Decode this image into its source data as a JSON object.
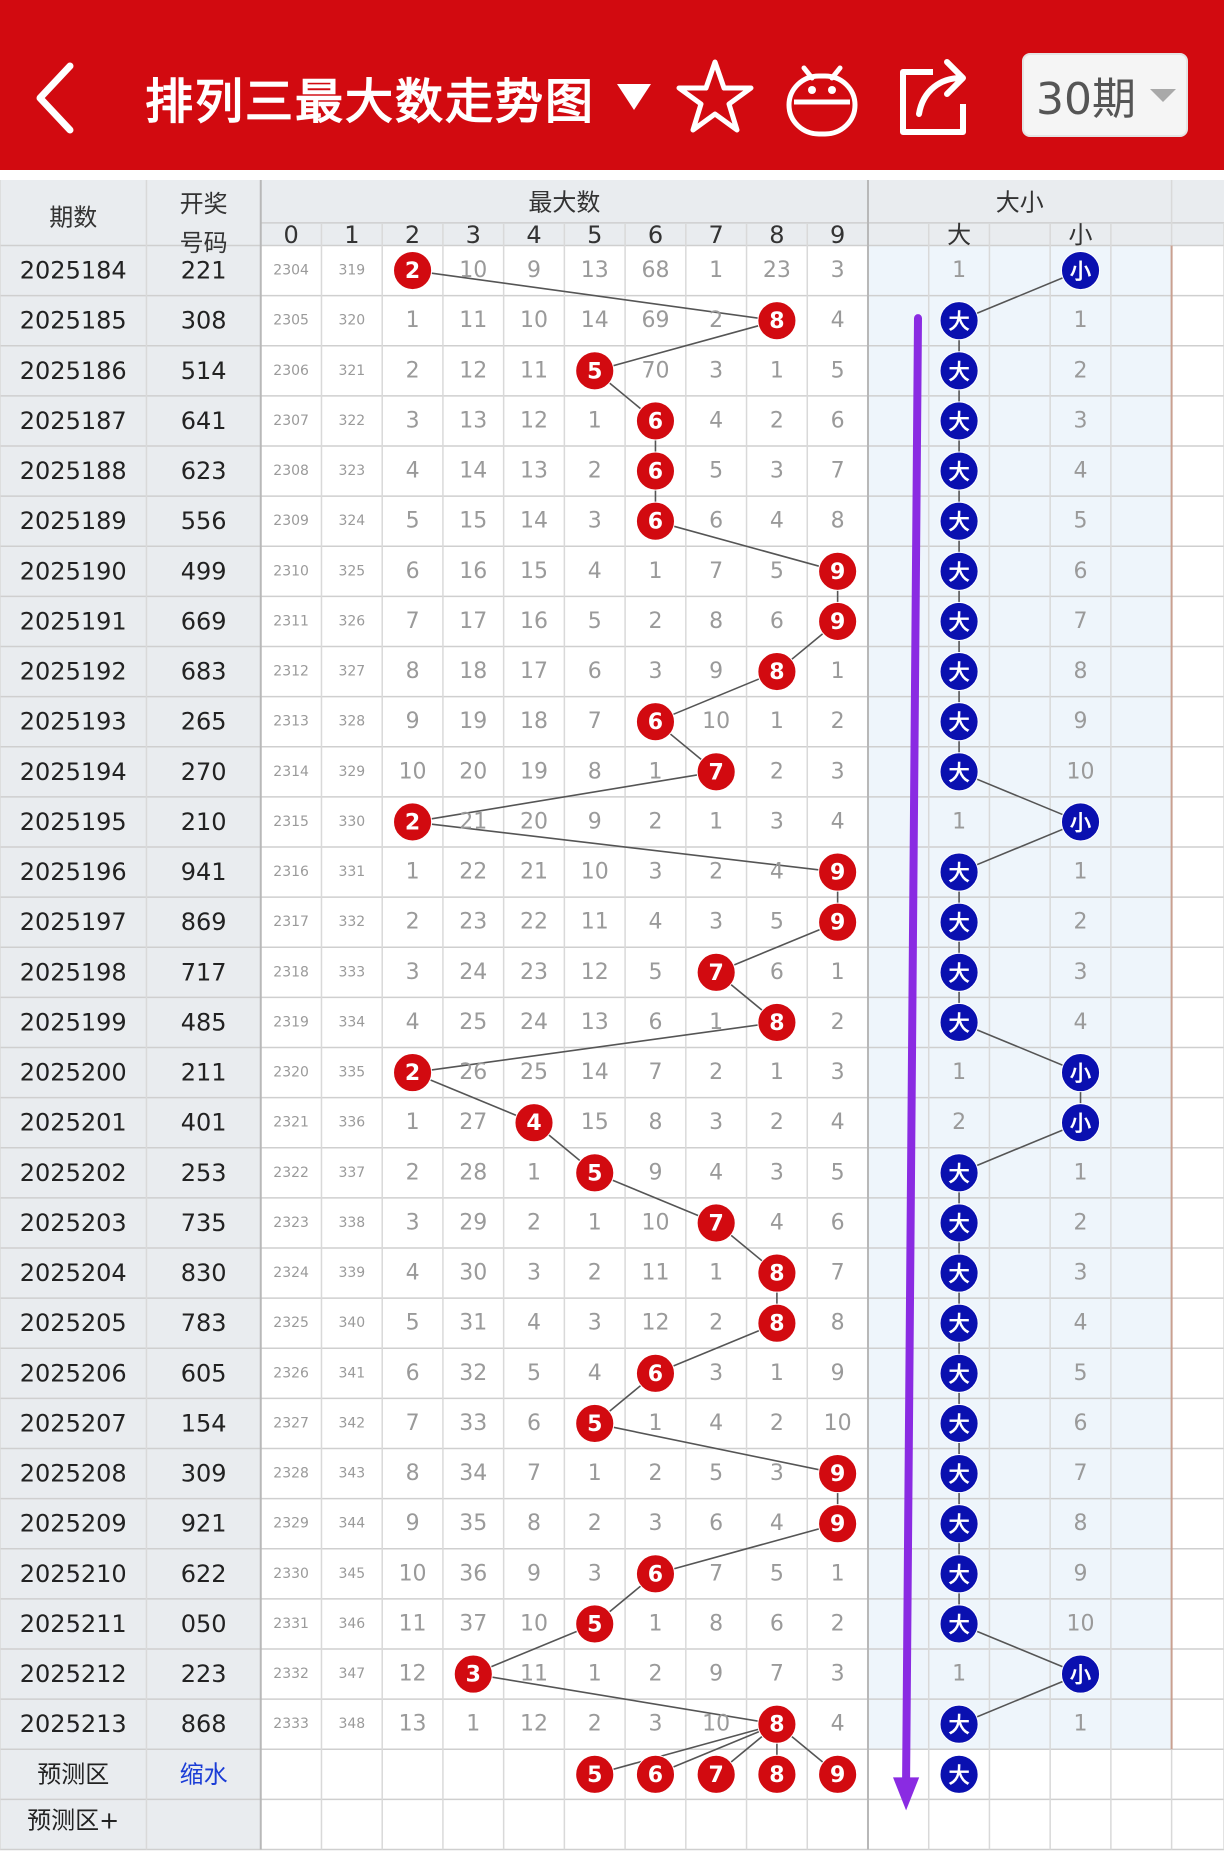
{
  "header": {
    "title": "排列三最大数走势图",
    "period_label": "30期",
    "icons": [
      "back-icon",
      "star-icon",
      "robot-icon",
      "share-icon",
      "dropdown-caret-icon"
    ]
  },
  "colors": {
    "header_bg": "#d20a10",
    "red_ball": "#d20a10",
    "blue_ball": "#0a10b0",
    "arrow": "#8a2be2",
    "zone_bg": "#eef5fb"
  },
  "table": {
    "col_issue": "期数",
    "col_draw": "开奖号码",
    "group_max": "最大数",
    "group_size": "大小",
    "digits": [
      "0",
      "1",
      "2",
      "3",
      "4",
      "5",
      "6",
      "7",
      "8",
      "9"
    ],
    "size_labels": [
      "大",
      "",
      "小"
    ],
    "rows": [
      {
        "issue": "2025184",
        "draw": "221",
        "c": [
          "2304",
          "319",
          "2",
          "10",
          "9",
          "13",
          "68",
          "1",
          "23",
          "3"
        ],
        "maxv": 2,
        "size": "小",
        "sz": [
          "1",
          "",
          "小"
        ]
      },
      {
        "issue": "2025185",
        "draw": "308",
        "c": [
          "2305",
          "320",
          "1",
          "11",
          "10",
          "14",
          "69",
          "2",
          "8",
          "4"
        ],
        "maxv": 8,
        "size": "大",
        "sz": [
          "大",
          "",
          "1"
        ]
      },
      {
        "issue": "2025186",
        "draw": "514",
        "c": [
          "2306",
          "321",
          "2",
          "12",
          "11",
          "5",
          "70",
          "3",
          "1",
          "5"
        ],
        "maxv": 5,
        "size": "大",
        "sz": [
          "大",
          "",
          "2"
        ]
      },
      {
        "issue": "2025187",
        "draw": "641",
        "c": [
          "2307",
          "322",
          "3",
          "13",
          "12",
          "1",
          "6",
          "4",
          "2",
          "6"
        ],
        "maxv": 6,
        "size": "大",
        "sz": [
          "大",
          "",
          "3"
        ]
      },
      {
        "issue": "2025188",
        "draw": "623",
        "c": [
          "2308",
          "323",
          "4",
          "14",
          "13",
          "2",
          "6",
          "5",
          "3",
          "7"
        ],
        "maxv": 6,
        "size": "大",
        "sz": [
          "大",
          "",
          "4"
        ]
      },
      {
        "issue": "2025189",
        "draw": "556",
        "c": [
          "2309",
          "324",
          "5",
          "15",
          "14",
          "3",
          "6",
          "6",
          "4",
          "8"
        ],
        "maxv": 6,
        "size": "大",
        "sz": [
          "大",
          "",
          "5"
        ]
      },
      {
        "issue": "2025190",
        "draw": "499",
        "c": [
          "2310",
          "325",
          "6",
          "16",
          "15",
          "4",
          "1",
          "7",
          "5",
          "9"
        ],
        "maxv": 9,
        "size": "大",
        "sz": [
          "大",
          "",
          "6"
        ]
      },
      {
        "issue": "2025191",
        "draw": "669",
        "c": [
          "2311",
          "326",
          "7",
          "17",
          "16",
          "5",
          "2",
          "8",
          "6",
          "9"
        ],
        "maxv": 9,
        "size": "大",
        "sz": [
          "大",
          "",
          "7"
        ]
      },
      {
        "issue": "2025192",
        "draw": "683",
        "c": [
          "2312",
          "327",
          "8",
          "18",
          "17",
          "6",
          "3",
          "9",
          "8",
          "1"
        ],
        "maxv": 8,
        "size": "大",
        "sz": [
          "大",
          "",
          "8"
        ]
      },
      {
        "issue": "2025193",
        "draw": "265",
        "c": [
          "2313",
          "328",
          "9",
          "19",
          "18",
          "7",
          "6",
          "10",
          "1",
          "2"
        ],
        "maxv": 6,
        "size": "大",
        "sz": [
          "大",
          "",
          "9"
        ]
      },
      {
        "issue": "2025194",
        "draw": "270",
        "c": [
          "2314",
          "329",
          "10",
          "20",
          "19",
          "8",
          "1",
          "7",
          "2",
          "3"
        ],
        "maxv": 7,
        "size": "大",
        "sz": [
          "大",
          "",
          "10"
        ]
      },
      {
        "issue": "2025195",
        "draw": "210",
        "c": [
          "2315",
          "330",
          "2",
          "21",
          "20",
          "9",
          "2",
          "1",
          "3",
          "4"
        ],
        "maxv": 2,
        "size": "小",
        "sz": [
          "1",
          "",
          "小"
        ]
      },
      {
        "issue": "2025196",
        "draw": "941",
        "c": [
          "2316",
          "331",
          "1",
          "22",
          "21",
          "10",
          "3",
          "2",
          "4",
          "9"
        ],
        "maxv": 9,
        "size": "大",
        "sz": [
          "大",
          "",
          "1"
        ]
      },
      {
        "issue": "2025197",
        "draw": "869",
        "c": [
          "2317",
          "332",
          "2",
          "23",
          "22",
          "11",
          "4",
          "3",
          "5",
          "9"
        ],
        "maxv": 9,
        "size": "大",
        "sz": [
          "大",
          "",
          "2"
        ]
      },
      {
        "issue": "2025198",
        "draw": "717",
        "c": [
          "2318",
          "333",
          "3",
          "24",
          "23",
          "12",
          "5",
          "7",
          "6",
          "1"
        ],
        "maxv": 7,
        "size": "大",
        "sz": [
          "大",
          "",
          "3"
        ]
      },
      {
        "issue": "2025199",
        "draw": "485",
        "c": [
          "2319",
          "334",
          "4",
          "25",
          "24",
          "13",
          "6",
          "1",
          "8",
          "2"
        ],
        "maxv": 8,
        "size": "大",
        "sz": [
          "大",
          "",
          "4"
        ]
      },
      {
        "issue": "2025200",
        "draw": "211",
        "c": [
          "2320",
          "335",
          "2",
          "26",
          "25",
          "14",
          "7",
          "2",
          "1",
          "3"
        ],
        "maxv": 2,
        "size": "小",
        "sz": [
          "1",
          "",
          "小"
        ]
      },
      {
        "issue": "2025201",
        "draw": "401",
        "c": [
          "2321",
          "336",
          "1",
          "27",
          "4",
          "15",
          "8",
          "3",
          "2",
          "4"
        ],
        "maxv": 4,
        "size": "小",
        "sz": [
          "2",
          "",
          "小"
        ]
      },
      {
        "issue": "2025202",
        "draw": "253",
        "c": [
          "2322",
          "337",
          "2",
          "28",
          "1",
          "5",
          "9",
          "4",
          "3",
          "5"
        ],
        "maxv": 5,
        "size": "大",
        "sz": [
          "大",
          "",
          "1"
        ]
      },
      {
        "issue": "2025203",
        "draw": "735",
        "c": [
          "2323",
          "338",
          "3",
          "29",
          "2",
          "1",
          "10",
          "7",
          "4",
          "6"
        ],
        "maxv": 7,
        "size": "大",
        "sz": [
          "大",
          "",
          "2"
        ]
      },
      {
        "issue": "2025204",
        "draw": "830",
        "c": [
          "2324",
          "339",
          "4",
          "30",
          "3",
          "2",
          "11",
          "1",
          "8",
          "7"
        ],
        "maxv": 8,
        "size": "大",
        "sz": [
          "大",
          "",
          "3"
        ]
      },
      {
        "issue": "2025205",
        "draw": "783",
        "c": [
          "2325",
          "340",
          "5",
          "31",
          "4",
          "3",
          "12",
          "2",
          "8",
          "8"
        ],
        "maxv": 8,
        "size": "大",
        "sz": [
          "大",
          "",
          "4"
        ]
      },
      {
        "issue": "2025206",
        "draw": "605",
        "c": [
          "2326",
          "341",
          "6",
          "32",
          "5",
          "4",
          "6",
          "3",
          "1",
          "9"
        ],
        "maxv": 6,
        "size": "大",
        "sz": [
          "大",
          "",
          "5"
        ]
      },
      {
        "issue": "2025207",
        "draw": "154",
        "c": [
          "2327",
          "342",
          "7",
          "33",
          "6",
          "5",
          "1",
          "4",
          "2",
          "10"
        ],
        "maxv": 5,
        "size": "大",
        "sz": [
          "大",
          "",
          "6"
        ]
      },
      {
        "issue": "2025208",
        "draw": "309",
        "c": [
          "2328",
          "343",
          "8",
          "34",
          "7",
          "1",
          "2",
          "5",
          "3",
          "9"
        ],
        "maxv": 9,
        "size": "大",
        "sz": [
          "大",
          "",
          "7"
        ]
      },
      {
        "issue": "2025209",
        "draw": "921",
        "c": [
          "2329",
          "344",
          "9",
          "35",
          "8",
          "2",
          "3",
          "6",
          "4",
          "9"
        ],
        "maxv": 9,
        "size": "大",
        "sz": [
          "大",
          "",
          "8"
        ]
      },
      {
        "issue": "2025210",
        "draw": "622",
        "c": [
          "2330",
          "345",
          "10",
          "36",
          "9",
          "3",
          "6",
          "7",
          "5",
          "1"
        ],
        "maxv": 6,
        "size": "大",
        "sz": [
          "大",
          "",
          "9"
        ]
      },
      {
        "issue": "2025211",
        "draw": "050",
        "c": [
          "2331",
          "346",
          "11",
          "37",
          "10",
          "5",
          "1",
          "8",
          "6",
          "2"
        ],
        "maxv": 5,
        "size": "大",
        "sz": [
          "大",
          "",
          "10"
        ]
      },
      {
        "issue": "2025212",
        "draw": "223",
        "c": [
          "2332",
          "347",
          "12",
          "3",
          "11",
          "1",
          "2",
          "9",
          "7",
          "3"
        ],
        "maxv": 3,
        "size": "小",
        "sz": [
          "1",
          "",
          "小"
        ]
      },
      {
        "issue": "2025213",
        "draw": "868",
        "c": [
          "2333",
          "348",
          "13",
          "1",
          "12",
          "2",
          "3",
          "10",
          "8",
          "4"
        ],
        "maxv": 8,
        "size": "大",
        "sz": [
          "大",
          "",
          "1"
        ]
      }
    ],
    "predict_label": "预测区",
    "predict_link": "缩水",
    "predict_balls": [
      "5",
      "6",
      "7",
      "8",
      "9"
    ],
    "predict_size": "大",
    "predict2_label": "预测区+"
  }
}
